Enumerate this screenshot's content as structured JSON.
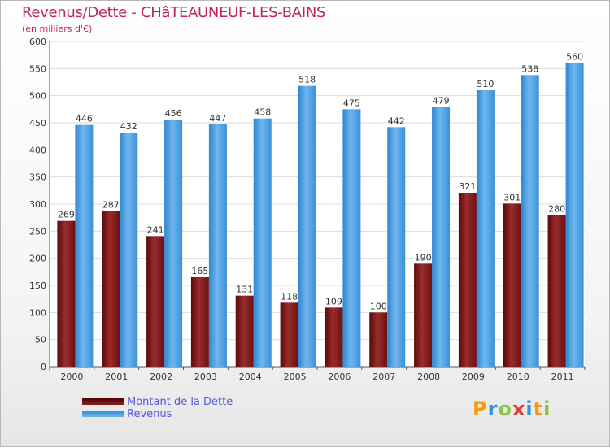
{
  "header": {
    "title": "Revenus/Dette - CHâTEAUNEUF-LES-BAINS",
    "subtitle": "(en milliers d'€)"
  },
  "chart_data": {
    "type": "bar",
    "categories": [
      "2000",
      "2001",
      "2002",
      "2003",
      "2004",
      "2005",
      "2006",
      "2007",
      "2008",
      "2009",
      "2010",
      "2011"
    ],
    "series": [
      {
        "name": "Montant de la Dette",
        "values": [
          269,
          287,
          241,
          165,
          131,
          118,
          109,
          100,
          190,
          321,
          301,
          280
        ],
        "color": "#7a1a1a"
      },
      {
        "name": "Revenus",
        "values": [
          446,
          432,
          456,
          447,
          458,
          518,
          475,
          442,
          479,
          510,
          538,
          560
        ],
        "color": "#4a9ee0"
      }
    ],
    "yticks": [
      0,
      50,
      100,
      150,
      200,
      250,
      300,
      350,
      400,
      450,
      500,
      550,
      600
    ],
    "ylim": [
      0,
      600
    ],
    "grid": true,
    "legend": "bottom-left"
  },
  "logo": {
    "letters": [
      "P",
      "r",
      "o",
      "x",
      "i",
      "t",
      "i"
    ],
    "colors": [
      "#f39c12",
      "#3a8fd8",
      "#8bc34a",
      "#e53935",
      "#3a8fd8",
      "#f39c12",
      "#8bc34a"
    ]
  }
}
